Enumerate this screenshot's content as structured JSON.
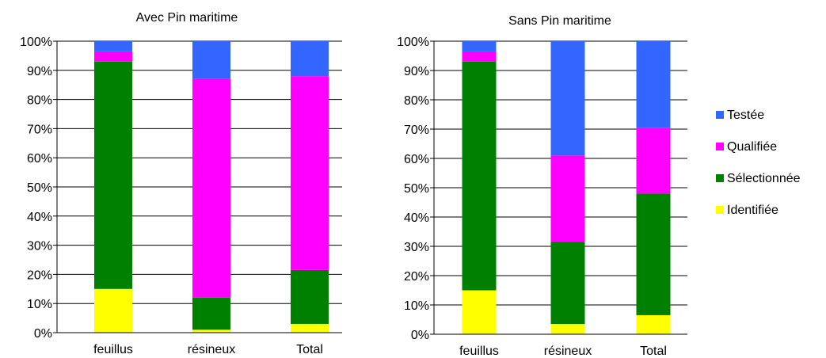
{
  "colors": {
    "Identifiée": "#ffff00",
    "Sélectionnée": "#008000",
    "Qualifiée": "#ff00ff",
    "Testée": "#3366ff"
  },
  "legend": {
    "placement": "right",
    "items": [
      {
        "label": "Testée",
        "color": "#3366ff"
      },
      {
        "label": "Qualifiée",
        "color": "#ff00ff"
      },
      {
        "label": "Sélectionnée",
        "color": "#008000"
      },
      {
        "label": "Identifiée",
        "color": "#ffff00"
      }
    ]
  },
  "chart_data": [
    {
      "type": "bar",
      "stacked": true,
      "percent": true,
      "title": "Avec Pin maritime",
      "categories": [
        "feuillus",
        "résineux",
        "Total"
      ],
      "ylim": [
        0,
        100
      ],
      "yticks": [
        "0%",
        "10%",
        "20%",
        "30%",
        "40%",
        "50%",
        "60%",
        "70%",
        "80%",
        "90%",
        "100%"
      ],
      "series": [
        {
          "name": "Identifiée",
          "values": [
            15,
            1,
            3
          ]
        },
        {
          "name": "Sélectionnée",
          "values": [
            78,
            11,
            18.5
          ]
        },
        {
          "name": "Qualifiée",
          "values": [
            3.5,
            75,
            66.5
          ]
        },
        {
          "name": "Testée",
          "values": [
            3.5,
            13,
            12
          ]
        }
      ]
    },
    {
      "type": "bar",
      "stacked": true,
      "percent": true,
      "title": "Sans Pin maritime",
      "categories": [
        "feuillus",
        "résineux",
        "Total"
      ],
      "ylim": [
        0,
        100
      ],
      "yticks": [
        "0%",
        "10%",
        "20%",
        "30%",
        "40%",
        "50%",
        "60%",
        "70%",
        "80%",
        "90%",
        "100%"
      ],
      "series": [
        {
          "name": "Identifiée",
          "values": [
            15,
            3.5,
            6.5
          ]
        },
        {
          "name": "Sélectionnée",
          "values": [
            78,
            28,
            41.5
          ]
        },
        {
          "name": "Qualifiée",
          "values": [
            3.5,
            29.5,
            22.5
          ]
        },
        {
          "name": "Testée",
          "values": [
            3.5,
            39,
            29.5
          ]
        }
      ]
    }
  ]
}
